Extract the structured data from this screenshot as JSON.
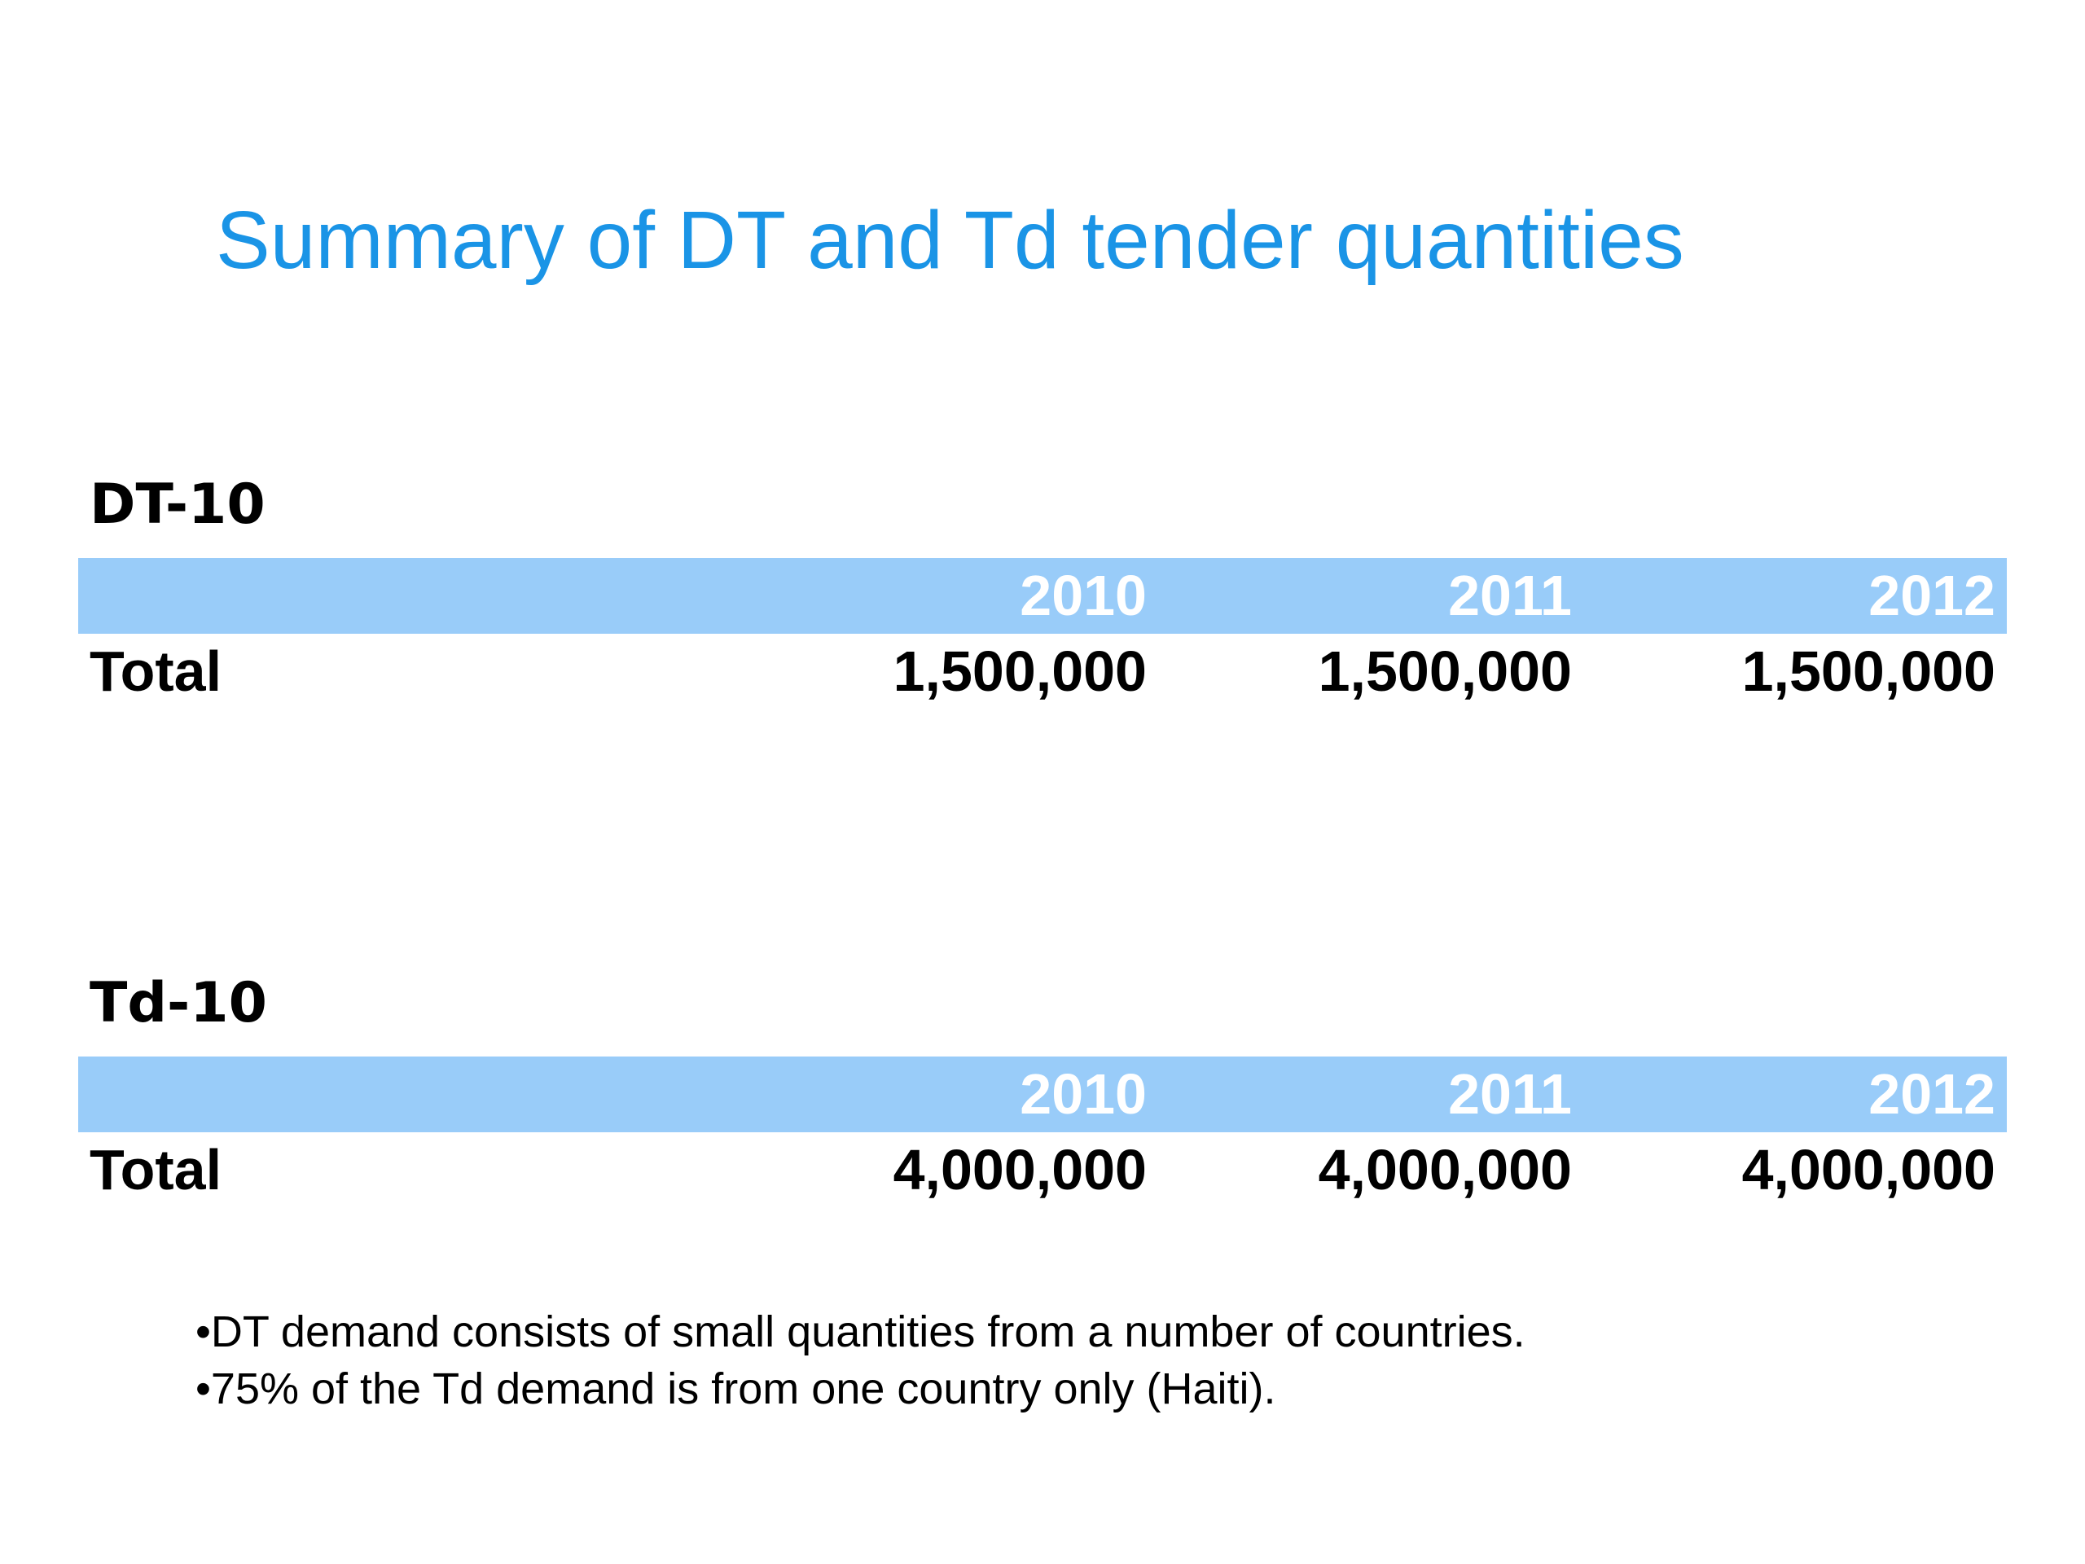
{
  "title": "Summary of DT and Td tender quantities",
  "tables": [
    {
      "heading": "DT-10",
      "columns": [
        "2010",
        "2011",
        "2012"
      ],
      "row_label": "Total",
      "values": [
        "1,500,000",
        "1,500,000",
        "1,500,000"
      ]
    },
    {
      "heading": "Td-10",
      "columns": [
        "2010",
        "2011",
        "2012"
      ],
      "row_label": "Total",
      "values": [
        "4,000,000",
        "4,000,000",
        "4,000,000"
      ]
    }
  ],
  "notes": [
    "•DT demand consists of small quantities from a number of countries.",
    "•75% of the Td demand is from one country only (Haiti)."
  ],
  "colors": {
    "title": "#1a94e6",
    "header_band": "#99ccf9",
    "header_text": "#ffffff",
    "body_text": "#000000"
  }
}
